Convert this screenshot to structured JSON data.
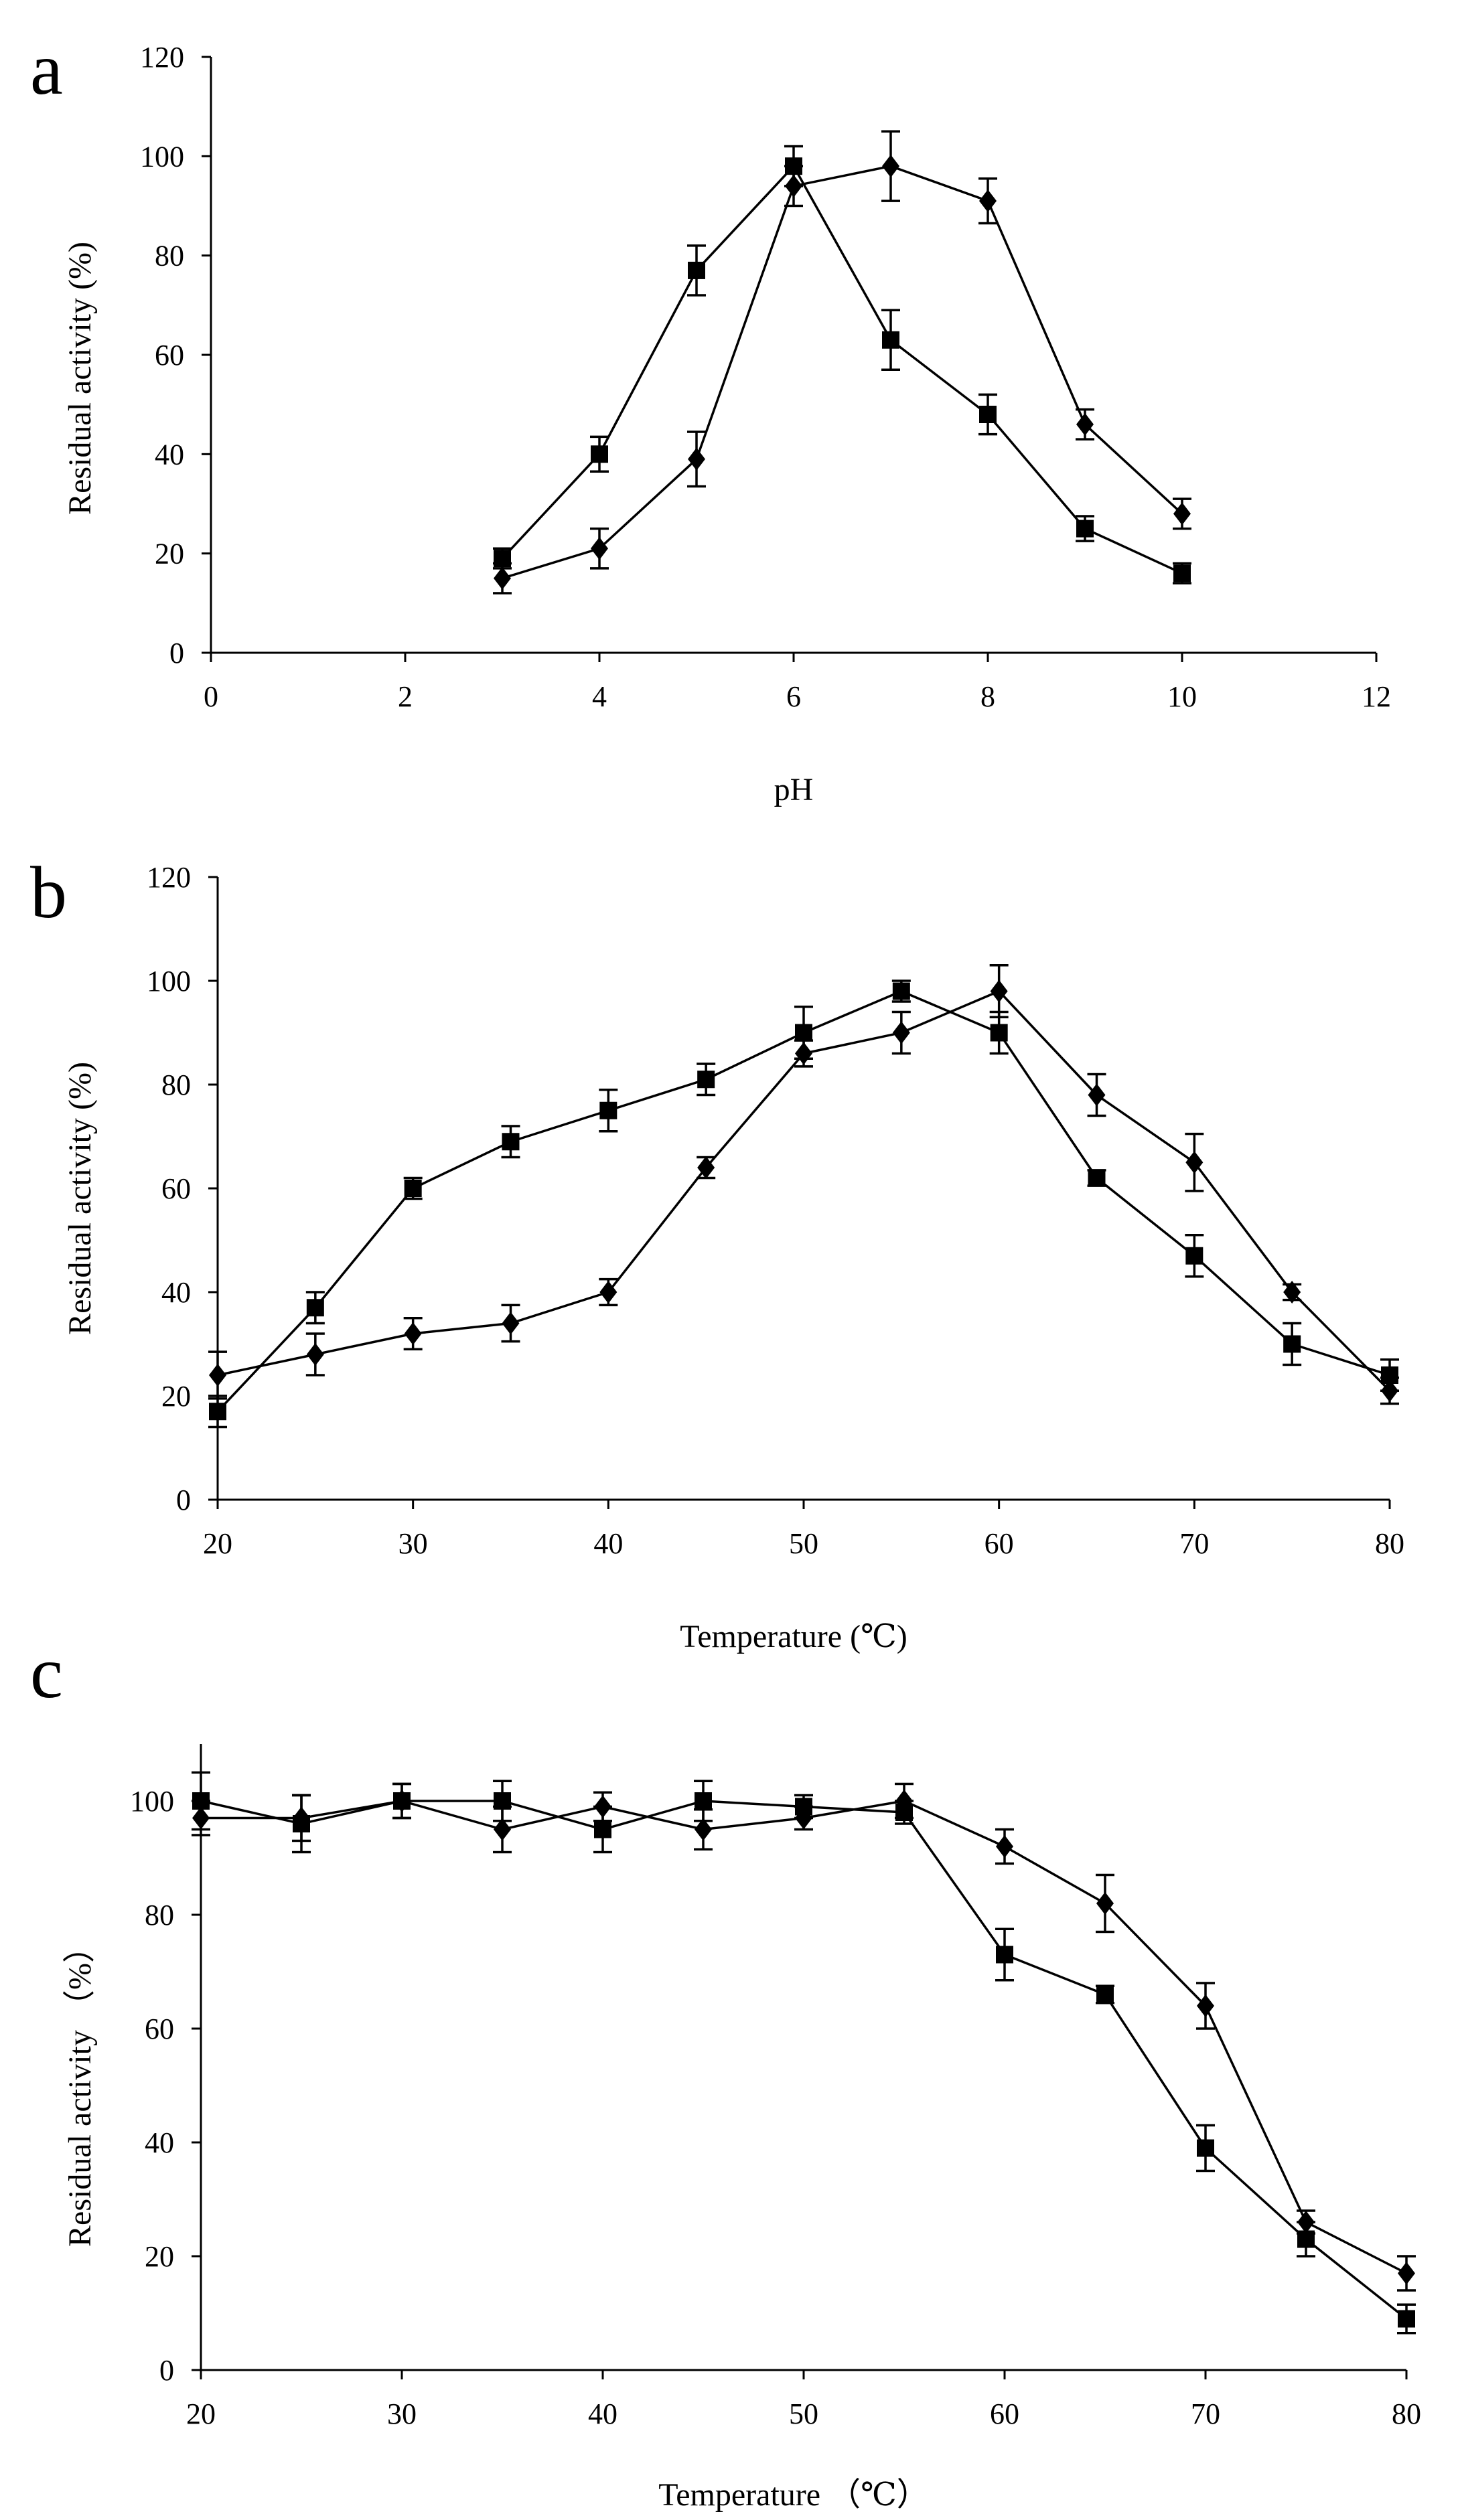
{
  "chart_data": [
    {
      "panel": "a",
      "type": "line",
      "title": "",
      "xlabel": "pH",
      "ylabel": "Residual activity (%)",
      "xlim": [
        0,
        12
      ],
      "ylim": [
        0,
        120
      ],
      "xticks": [
        0,
        2,
        4,
        6,
        8,
        10,
        12
      ],
      "yticks": [
        0,
        20,
        40,
        60,
        80,
        100,
        120
      ],
      "series": [
        {
          "name": "square",
          "marker": "square",
          "x": [
            3,
            4,
            5,
            6,
            7,
            8,
            9,
            10
          ],
          "values": [
            19,
            40,
            77,
            98,
            63,
            48,
            25,
            16
          ],
          "errors": [
            2,
            3.5,
            5,
            4,
            6,
            4,
            2.5,
            2
          ]
        },
        {
          "name": "diamond",
          "marker": "diamond",
          "x": [
            3,
            4,
            5,
            6,
            7,
            8,
            9,
            10
          ],
          "values": [
            15,
            21,
            39,
            94,
            98,
            91,
            46,
            28
          ],
          "errors": [
            3,
            4,
            5.5,
            4,
            7,
            4.5,
            3,
            3
          ]
        }
      ]
    },
    {
      "panel": "b",
      "type": "line",
      "title": "",
      "xlabel": "Temperature (℃)",
      "ylabel": "Residual activity (%)",
      "xlim": [
        20,
        80
      ],
      "ylim": [
        0,
        120
      ],
      "xticks": [
        20,
        30,
        40,
        50,
        60,
        70,
        80
      ],
      "yticks": [
        0,
        20,
        40,
        60,
        80,
        100,
        120
      ],
      "series": [
        {
          "name": "square",
          "marker": "square",
          "x": [
            20,
            25,
            30,
            35,
            40,
            45,
            50,
            55,
            60,
            65,
            70,
            75,
            80
          ],
          "values": [
            17,
            37,
            60,
            69,
            75,
            81,
            90,
            98,
            90,
            62,
            47,
            30,
            24
          ],
          "errors": [
            3,
            3,
            2,
            3,
            4,
            3,
            5,
            2,
            4,
            1.5,
            4,
            4,
            3
          ]
        },
        {
          "name": "diamond",
          "marker": "diamond",
          "x": [
            20,
            25,
            30,
            35,
            40,
            45,
            50,
            55,
            60,
            65,
            70,
            75,
            80
          ],
          "values": [
            24,
            28,
            32,
            34,
            40,
            64,
            86,
            90,
            98,
            78,
            65,
            40,
            21
          ],
          "errors": [
            4.5,
            4,
            3,
            3.5,
            2.5,
            2,
            2.5,
            4,
            5,
            4,
            5.5,
            1.5,
            2.5
          ]
        }
      ]
    },
    {
      "panel": "c",
      "type": "line",
      "title": "",
      "xlabel": "Temperature （℃）",
      "ylabel": "Residual activity （%）",
      "xlim": [
        20,
        80
      ],
      "ylim": [
        0,
        110
      ],
      "xticks": [
        20,
        30,
        40,
        50,
        60,
        70,
        80
      ],
      "yticks": [
        0,
        20,
        40,
        60,
        80,
        100
      ],
      "series": [
        {
          "name": "square",
          "marker": "square",
          "x": [
            20,
            25,
            30,
            35,
            40,
            45,
            50,
            55,
            60,
            65,
            70,
            75,
            80
          ],
          "values": [
            100,
            96,
            100,
            100,
            95,
            100,
            99,
            98,
            73,
            66,
            39,
            23,
            9
          ],
          "errors": [
            5,
            5,
            3,
            3.5,
            4,
            3.5,
            2,
            2,
            4.5,
            1.5,
            4,
            3,
            2.5
          ]
        },
        {
          "name": "diamond",
          "marker": "diamond",
          "x": [
            20,
            25,
            30,
            35,
            40,
            45,
            50,
            55,
            60,
            65,
            70,
            75,
            80
          ],
          "values": [
            97,
            97,
            100,
            95,
            99,
            95,
            97,
            100,
            92,
            82,
            64,
            26,
            17
          ],
          "errors": [
            3,
            4,
            3,
            4,
            2.5,
            3.5,
            2,
            3,
            3,
            5,
            4,
            2,
            3
          ]
        }
      ]
    }
  ]
}
